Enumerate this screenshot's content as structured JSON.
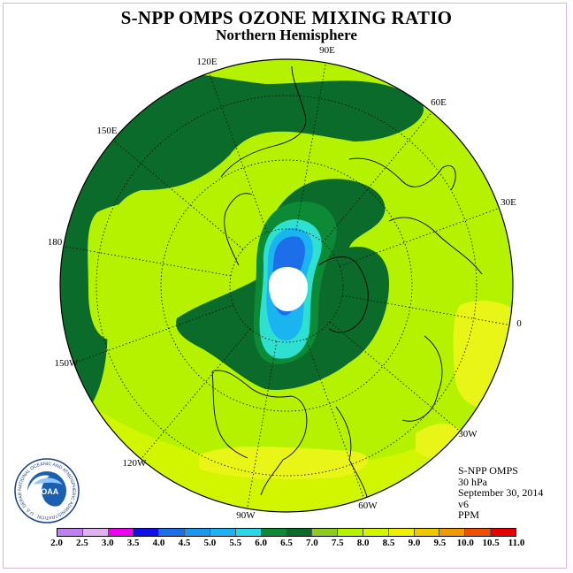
{
  "title": "S-NPP OMPS OZONE MIXING RATIO",
  "subtitle": "Northern Hemisphere",
  "map": {
    "projection": "north-polar-stereographic",
    "longitude_labels": [
      {
        "id": "90e",
        "text": "90E"
      },
      {
        "id": "60e",
        "text": "60E"
      },
      {
        "id": "30e",
        "text": "30E"
      },
      {
        "id": "0",
        "text": "0"
      },
      {
        "id": "30w",
        "text": "30W"
      },
      {
        "id": "60w",
        "text": "60W"
      },
      {
        "id": "90w",
        "text": "90W"
      },
      {
        "id": "120w",
        "text": "120W"
      },
      {
        "id": "150w",
        "text": "150W"
      },
      {
        "id": "180",
        "text": "180"
      },
      {
        "id": "150e",
        "text": "150E"
      },
      {
        "id": "120e",
        "text": "120E"
      }
    ],
    "colors": {
      "background_low": "#b4f200",
      "light_green": "#d2f500",
      "mid_green": "#8ccc20",
      "dark_green": "#0a6b2a",
      "green_6_5": "#0c8a36",
      "yellow": "#e8f516",
      "cyan": "#2ee0d0",
      "sky": "#1ab5f0",
      "blue": "#1c6fe8",
      "no_data": "#ffffff"
    }
  },
  "info": {
    "instrument": "S-NPP OMPS",
    "level": "30 hPa",
    "date": "September 30, 2014",
    "version": "v6",
    "units": "PPM"
  },
  "logo": {
    "text": "NOAA",
    "ring_text": "NATIONAL OCEANIC AND ATMOSPHERIC ADMINISTRATION · U.S. DEPARTMENT OF COMMERCE"
  },
  "colorbar": {
    "ticks": [
      "2.0",
      "2.5",
      "3.0",
      "3.5",
      "4.0",
      "4.5",
      "5.0",
      "5.5",
      "6.0",
      "6.5",
      "7.0",
      "7.5",
      "8.0",
      "8.5",
      "9.0",
      "9.5",
      "10.0",
      "10.5",
      "11.0"
    ],
    "colors": [
      "#c080f0",
      "#e0b0f0",
      "#f000f0",
      "#1010e8",
      "#1c6fe8",
      "#1a98ee",
      "#1ab5f0",
      "#28d8e8",
      "#0c8a36",
      "#0a6b2a",
      "#8ccc20",
      "#b4f200",
      "#d2f500",
      "#f0f000",
      "#f0c800",
      "#f09a00",
      "#f05000",
      "#e80000",
      "#8a5a3a"
    ]
  }
}
